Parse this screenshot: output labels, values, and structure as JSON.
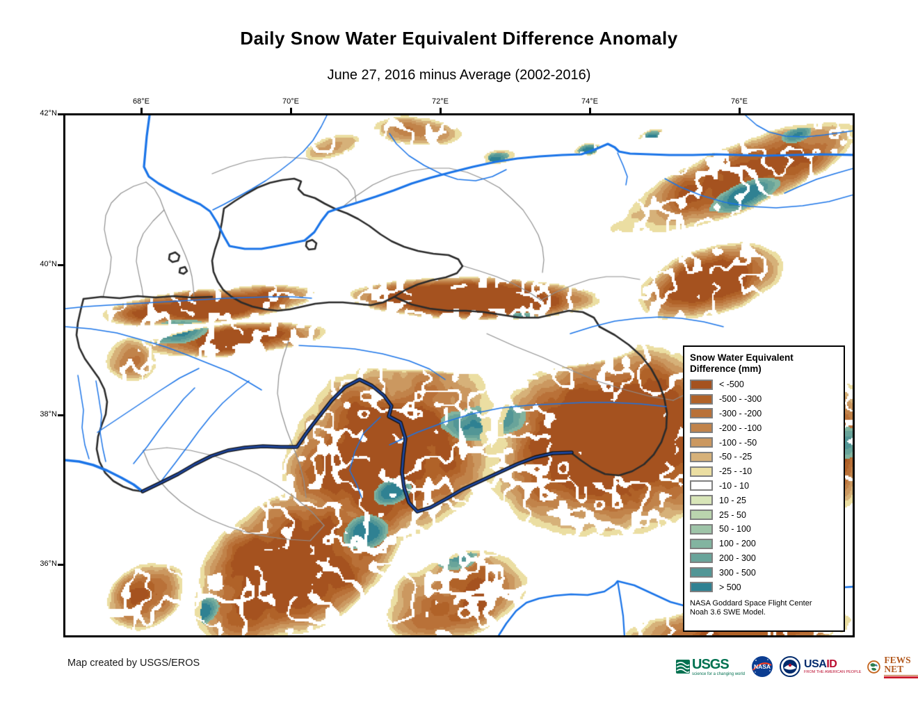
{
  "title": "Daily Snow Water Equivalent Difference Anomaly",
  "subtitle": "June 27, 2016 minus Average (2002-2016)",
  "map": {
    "lon_ticks": [
      "68°E",
      "70°E",
      "72°E",
      "74°E",
      "76°E"
    ],
    "lat_ticks": [
      "42°N",
      "40°N",
      "38°N",
      "36°N"
    ],
    "colors": {
      "background": "#ffffff",
      "frame": "#000000",
      "river": "#1a74e8",
      "border_river_outer": "#101010",
      "border_river_inner": "#1e459a",
      "country_border": "#2b2b2b",
      "admin_border": "#8e8e8e"
    }
  },
  "legend": {
    "title_line1": "Snow Water Equivalent",
    "title_line2": "Difference (mm)",
    "swatch_border": "#7f7f7f",
    "entries": [
      {
        "label": "< -500",
        "color": "#A5521F"
      },
      {
        "label": "-500 - -300",
        "color": "#B06228"
      },
      {
        "label": "-300 - -200",
        "color": "#B97138"
      },
      {
        "label": "-200 - -100",
        "color": "#C1834A"
      },
      {
        "label": "-100 - -50",
        "color": "#CB9860"
      },
      {
        "label": "-50 - -25",
        "color": "#D6B179"
      },
      {
        "label": "-25 - -10",
        "color": "#EBDEA2"
      },
      {
        "label": "-10 - 10",
        "color": "#FFFFFF"
      },
      {
        "label": "10 - 25",
        "color": "#D8E5B8"
      },
      {
        "label": "25 - 50",
        "color": "#BAD4AE"
      },
      {
        "label": "50 - 100",
        "color": "#9EC4A8"
      },
      {
        "label": "100 - 200",
        "color": "#82B4A0"
      },
      {
        "label": "200 - 300",
        "color": "#69A49A"
      },
      {
        "label": "300 - 500",
        "color": "#529696"
      },
      {
        "label": "> 500",
        "color": "#2F8192"
      }
    ],
    "attribution_line1": "NASA Goddard Space Flight Center",
    "attribution_line2": "Noah 3.6 SWE Model."
  },
  "footer": {
    "credit": "Map created by USGS/EROS"
  },
  "logos": {
    "usgs": {
      "text": "USGS",
      "tagline": "science for a changing world",
      "color": "#007150"
    },
    "nasa": {
      "text": "NASA",
      "color": "#0b3d91"
    },
    "usaid": {
      "text_usa": "USA",
      "text_id": "ID",
      "tagline": "FROM THE AMERICAN PEOPLE",
      "color": "#002a6c",
      "accent": "#ba0c2f"
    },
    "fewsnet": {
      "text": "FEWS NET",
      "color": "#b35a1f"
    }
  }
}
